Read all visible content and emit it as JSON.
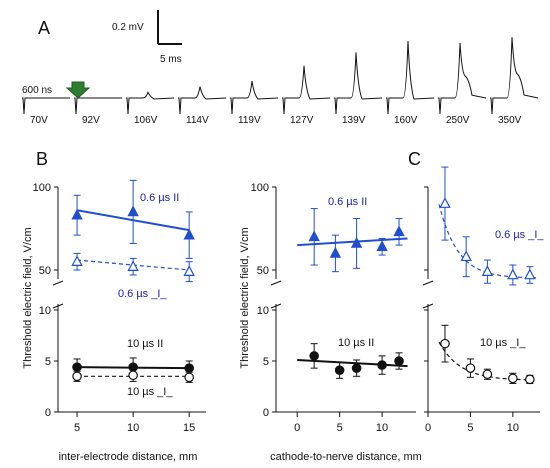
{
  "panel_a": {
    "letter": "A",
    "scale_v": "0.2 mV",
    "scale_t": "5 ms",
    "pulse_label": "600 ns",
    "voltages": [
      "70V",
      "92V",
      "106V",
      "114V",
      "119V",
      "127V",
      "139V",
      "160V",
      "250V",
      "350V"
    ],
    "peak_heights_mv": [
      0,
      0,
      0.03,
      0.06,
      0.09,
      0.17,
      0.24,
      0.3,
      0.29,
      0.32
    ],
    "arrow_color": "#2e7d32"
  },
  "colors": {
    "blue": "#1f4fcf",
    "black": "#111111"
  },
  "chart_data": [
    {
      "type": "scatter",
      "panel": "B",
      "xlabel": "inter-electrode distance, mm",
      "ylabel": "Threshold electric field, V/cm",
      "x_ticks": [
        "5",
        "10",
        "15"
      ],
      "y_ticks_upper": [
        "50",
        "100"
      ],
      "y_ticks_lower": [
        "0",
        "5",
        "10"
      ],
      "series": [
        {
          "name": "0.6 µs II",
          "marker": "filled-triangle",
          "color": "#1f4fcf",
          "x": [
            5,
            10,
            15
          ],
          "y": [
            83,
            85,
            71
          ],
          "err": [
            12,
            19,
            14
          ],
          "fit": [
            [
              5,
              86
            ],
            [
              15,
              74
            ]
          ],
          "fit_style": "solid"
        },
        {
          "name": "0.6 µs _I_",
          "marker": "open-triangle",
          "color": "#1f4fcf",
          "x": [
            5,
            10,
            15
          ],
          "y": [
            55,
            52,
            49
          ],
          "err": [
            5,
            5,
            6
          ],
          "fit": [
            [
              5,
              56
            ],
            [
              15,
              50
            ]
          ],
          "fit_style": "dashed"
        },
        {
          "name": "10 µs II",
          "marker": "filled-circle",
          "color": "#111111",
          "x": [
            5,
            10,
            15
          ],
          "y": [
            4.4,
            4.4,
            4.3
          ],
          "err": [
            0.8,
            0.9,
            0.7
          ],
          "fit": [
            [
              5,
              4.4
            ],
            [
              15,
              4.3
            ]
          ],
          "fit_style": "solid"
        },
        {
          "name": "10 µs _I_",
          "marker": "open-circle",
          "color": "#111111",
          "x": [
            5,
            10,
            15
          ],
          "y": [
            3.5,
            3.6,
            3.4
          ],
          "err": [
            0.5,
            0.6,
            0.5
          ],
          "fit": [
            [
              5,
              3.5
            ],
            [
              15,
              3.5
            ]
          ],
          "fit_style": "dashed"
        }
      ],
      "labels": [
        {
          "text": "0.6 µs II",
          "color": "#1a1aa6"
        },
        {
          "text": "0.6 µs _I_",
          "color": "#1a1aa6"
        },
        {
          "text": "10 µs II",
          "color": "#111111"
        },
        {
          "text": "10 µs _I_",
          "color": "#111111"
        }
      ]
    },
    {
      "type": "scatter",
      "panel": "",
      "xlabel": "cathode-to-nerve distance, mm",
      "ylabel": "Threshold electric field, V/cm",
      "x_ticks": [
        "0",
        "5",
        "10"
      ],
      "y_ticks_upper": [
        "50",
        "100"
      ],
      "y_ticks_lower": [
        "0",
        "5",
        "10"
      ],
      "series": [
        {
          "name": "0.6 µs II",
          "marker": "filled-triangle",
          "color": "#1f4fcf",
          "x": [
            2,
            4.5,
            7,
            10,
            12
          ],
          "y": [
            70,
            60,
            66,
            64,
            73
          ],
          "err": [
            17,
            11,
            15,
            5,
            8
          ],
          "fit": [
            [
              0,
              65
            ],
            [
              13,
              69
            ]
          ],
          "fit_style": "solid"
        },
        {
          "name": "10 µs II",
          "marker": "filled-circle",
          "color": "#111111",
          "x": [
            2,
            5,
            7,
            10,
            12
          ],
          "y": [
            5.5,
            4.1,
            4.3,
            4.6,
            5.0
          ],
          "err": [
            1.2,
            0.8,
            0.8,
            0.9,
            0.8
          ],
          "fit": [
            [
              0,
              5.1
            ],
            [
              13,
              4.5
            ]
          ],
          "fit_style": "solid"
        }
      ],
      "labels": [
        {
          "text": "0.6 µs II",
          "color": "#1a1aa6"
        },
        {
          "text": "10 µs II",
          "color": "#111111"
        }
      ]
    },
    {
      "type": "scatter",
      "panel": "C",
      "xlabel": "",
      "x_ticks": [
        "0",
        "5",
        "10"
      ],
      "series": [
        {
          "name": "0.6 µs _I_",
          "marker": "open-triangle",
          "color": "#1f4fcf",
          "x": [
            2,
            4.5,
            7,
            10,
            12
          ],
          "y": [
            90,
            58,
            49,
            47,
            47
          ],
          "err": [
            22,
            12,
            7,
            6,
            5
          ],
          "fit": "decay",
          "fit_params": [
            45,
            80,
            0.45
          ],
          "fit_style": "dashed"
        },
        {
          "name": "10 µs _I_",
          "marker": "open-circle",
          "color": "#111111",
          "x": [
            2,
            5,
            7,
            10,
            12
          ],
          "y": [
            6.7,
            4.3,
            3.7,
            3.3,
            3.2
          ],
          "err": [
            1.8,
            0.9,
            0.5,
            0.5,
            0.4
          ],
          "fit": "decay",
          "fit_params": [
            3.1,
            6.3,
            0.4
          ],
          "fit_style": "dashed"
        }
      ],
      "labels": [
        {
          "text": "0.6 µs _I_",
          "color": "#1a1aa6"
        },
        {
          "text": "10 µs _I_",
          "color": "#111111"
        }
      ]
    }
  ]
}
